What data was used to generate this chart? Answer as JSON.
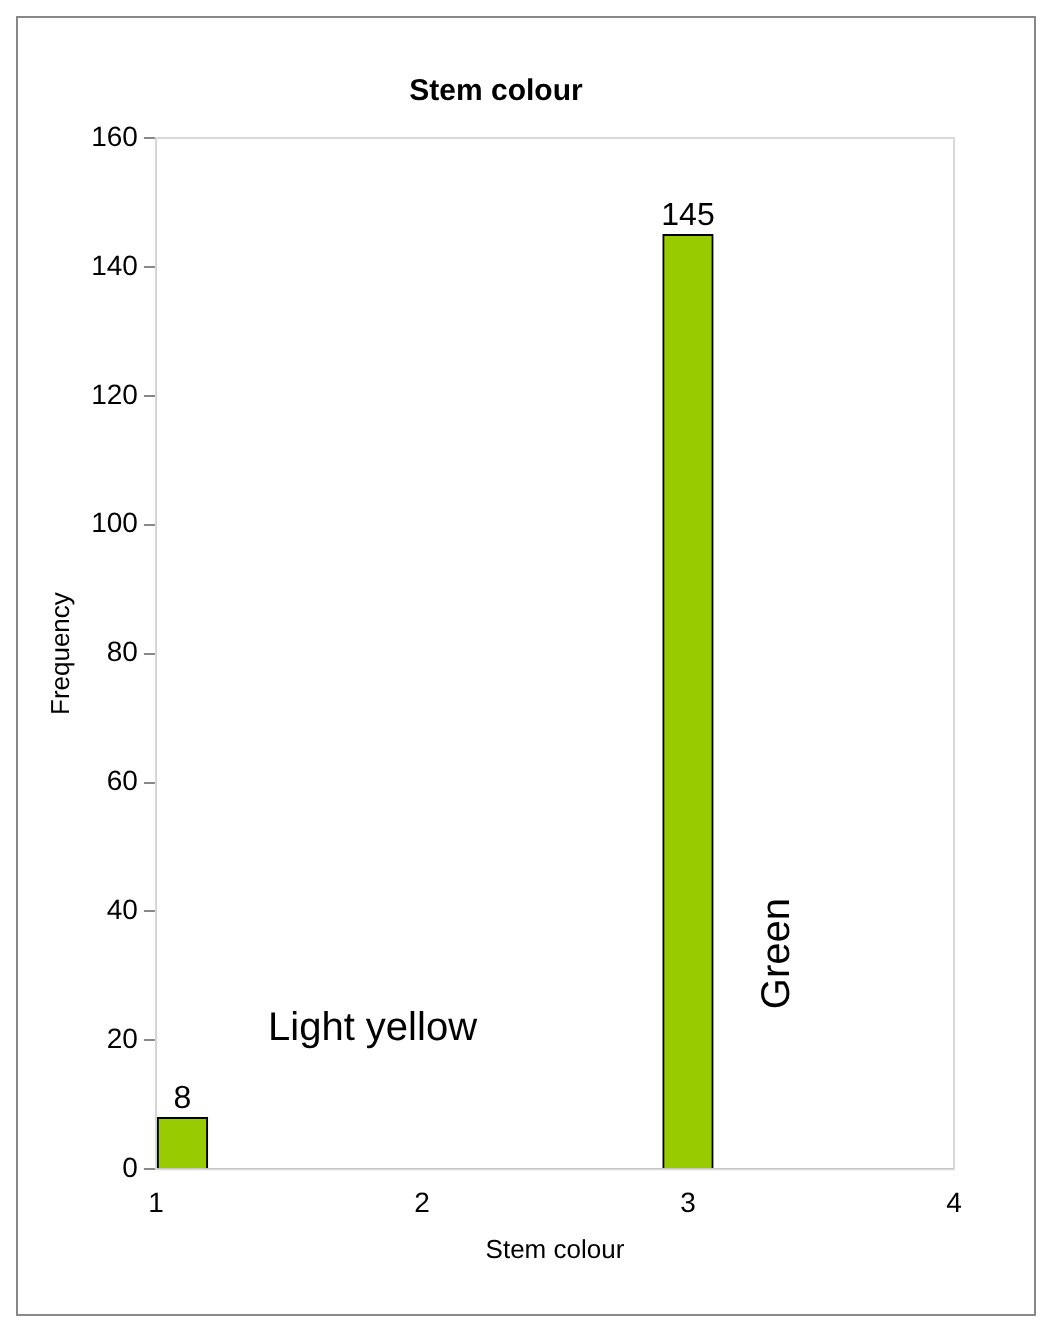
{
  "chart_data": {
    "type": "bar",
    "title": "Stem colour",
    "xlabel": "Stem colour",
    "ylabel": "Frequency",
    "x": [
      1.1,
      3
    ],
    "values": [
      8,
      145
    ],
    "color": "#99cc00",
    "xlim": [
      1,
      4
    ],
    "xticks": [
      1,
      2,
      3,
      4
    ],
    "ylim": [
      0,
      160
    ],
    "yticks": [
      0,
      20,
      40,
      60,
      80,
      100,
      120,
      140,
      160
    ],
    "grid": false,
    "legend": false,
    "data_labels": true,
    "annotations": [
      "Light yellow",
      "Green"
    ]
  }
}
